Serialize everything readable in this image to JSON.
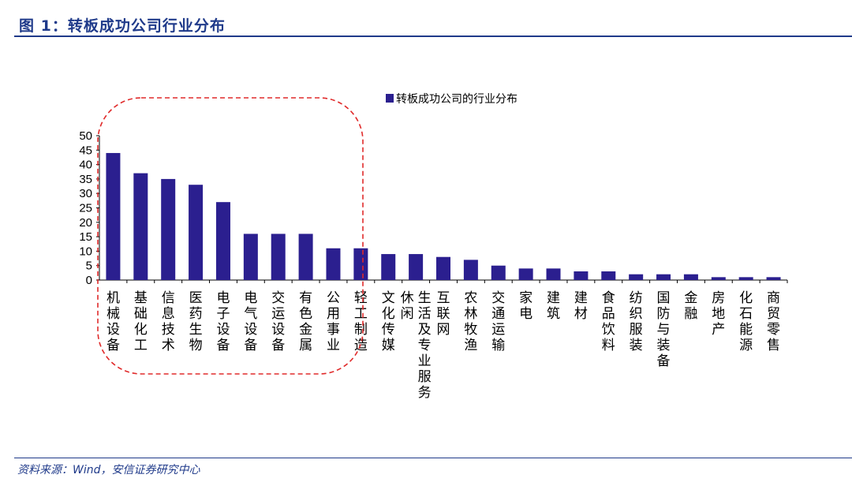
{
  "figure": {
    "title": "图 1：转板成功公司行业分布",
    "source": "资料来源：Wind，安信证券研究中心"
  },
  "colors": {
    "bar": "#2b1f8f",
    "accent": "#1f3a8a",
    "highlight": "#e02b2b"
  },
  "chart_data": {
    "type": "bar",
    "categories": [
      "机械设备",
      "基础化工",
      "信息技术",
      "医药生物",
      "电子设备",
      "电气设备",
      "交运设备",
      "有色金属",
      "公用事业",
      "轻工制造",
      "文化传媒",
      "休闲 生活及专业服务",
      "互联网",
      "农林牧渔",
      "交通运输",
      "家电",
      "建筑",
      "建材",
      "食品饮料",
      "纺织服装",
      "国防与装备",
      "金融",
      "房地产",
      "化石能源",
      "商贸零售"
    ],
    "series": [
      {
        "name": "转板成功公司的行业分布",
        "values": [
          44,
          37,
          35,
          33,
          27,
          16,
          16,
          16,
          11,
          11,
          9,
          9,
          8,
          7,
          5,
          4,
          4,
          3,
          3,
          2,
          2,
          2,
          1,
          1,
          1
        ]
      }
    ],
    "yticks": [
      0,
      5,
      10,
      15,
      20,
      25,
      30,
      35,
      40,
      45,
      50
    ],
    "ylim": [
      0,
      50
    ],
    "legend_position": "top-center",
    "grid": false,
    "annotation": "dashed rounded box highlighting the first nine categories"
  }
}
